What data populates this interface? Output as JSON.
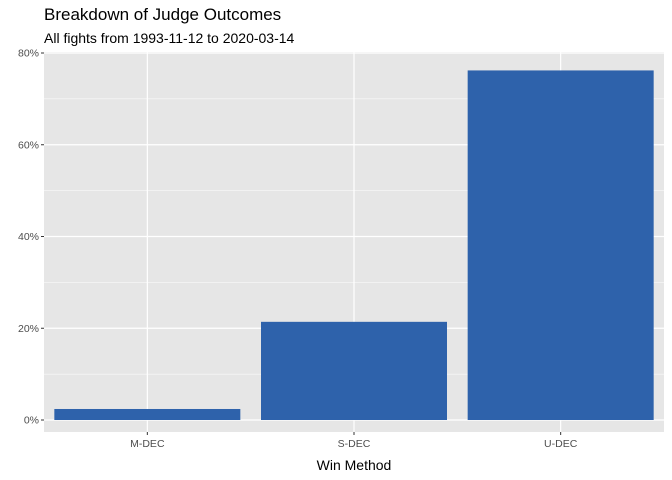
{
  "chart_data": {
    "type": "bar",
    "title": "Breakdown of Judge Outcomes",
    "subtitle": "All fights from 1993-11-12 to 2020-03-14",
    "xlabel": "Win Method",
    "ylabel": "",
    "categories": [
      "M-DEC",
      "S-DEC",
      "U-DEC"
    ],
    "values": [
      2.4,
      21.4,
      76.2
    ],
    "value_unit": "%",
    "ylim": [
      0,
      80
    ],
    "yticks": [
      0,
      20,
      40,
      60,
      80
    ],
    "ytick_labels": [
      "0%",
      "20%",
      "40%",
      "60%",
      "80%"
    ],
    "grid": true,
    "legend": "none",
    "colors": {
      "bar": "#2E62AB",
      "panel": "#E6E6E6",
      "grid_major": "#FFFFFF",
      "axis_text": "#4D4D4D"
    }
  }
}
